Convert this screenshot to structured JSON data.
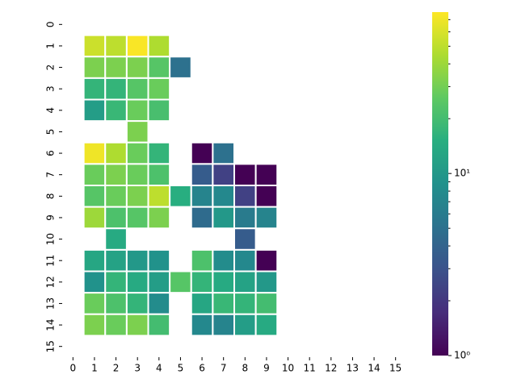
{
  "chart_data": {
    "type": "heatmap",
    "categories": [
      "0",
      "1",
      "2",
      "3",
      "4",
      "5",
      "6",
      "7",
      "8",
      "9",
      "10",
      "11",
      "12",
      "13",
      "14",
      "15"
    ],
    "y_categories": [
      "0",
      "1",
      "2",
      "3",
      "4",
      "5",
      "6",
      "7",
      "8",
      "9",
      "10",
      "11",
      "12",
      "13",
      "14",
      "15"
    ],
    "values": [
      [
        null,
        null,
        null,
        null,
        null,
        null,
        null,
        null,
        null,
        null,
        null,
        null,
        null,
        null,
        null,
        null
      ],
      [
        null,
        55,
        50,
        75,
        45,
        null,
        null,
        null,
        null,
        null,
        null,
        null,
        null,
        null,
        null,
        null
      ],
      [
        null,
        32,
        32,
        32,
        24,
        5,
        null,
        null,
        null,
        null,
        null,
        null,
        null,
        null,
        null,
        null
      ],
      [
        null,
        17,
        17,
        24,
        28,
        null,
        null,
        null,
        null,
        null,
        null,
        null,
        null,
        null,
        null,
        null
      ],
      [
        null,
        11,
        18,
        28,
        21,
        null,
        null,
        null,
        null,
        null,
        null,
        null,
        null,
        null,
        null,
        null
      ],
      [
        null,
        null,
        null,
        32,
        null,
        null,
        null,
        null,
        null,
        null,
        null,
        null,
        null,
        null,
        null,
        null
      ],
      [
        null,
        70,
        45,
        28,
        17,
        null,
        1,
        5,
        null,
        null,
        null,
        null,
        null,
        null,
        null,
        null
      ],
      [
        null,
        28,
        32,
        28,
        22,
        null,
        3.5,
        2.3,
        1,
        1,
        null,
        null,
        null,
        null,
        null,
        null
      ],
      [
        null,
        24,
        28,
        32,
        50,
        15,
        7,
        7.5,
        2.3,
        1,
        null,
        null,
        null,
        null,
        null,
        null
      ],
      [
        null,
        40,
        22,
        24,
        32,
        null,
        4.5,
        10,
        6,
        7,
        null,
        null,
        null,
        null,
        null,
        null
      ],
      [
        null,
        null,
        14,
        null,
        null,
        null,
        null,
        null,
        3.5,
        null,
        null,
        null,
        null,
        null,
        null,
        null
      ],
      [
        null,
        13,
        12,
        10,
        9,
        null,
        22,
        8,
        7.5,
        1,
        null,
        null,
        null,
        null,
        null,
        null
      ],
      [
        null,
        9,
        17,
        14,
        11,
        24,
        17,
        14,
        12,
        10,
        null,
        null,
        null,
        null,
        null,
        null
      ],
      [
        null,
        28,
        22,
        17,
        8,
        null,
        13,
        18,
        17,
        20,
        null,
        null,
        null,
        null,
        null,
        null
      ],
      [
        null,
        32,
        28,
        32,
        20,
        null,
        7.5,
        7,
        11,
        14,
        null,
        null,
        null,
        null,
        null,
        null
      ],
      [
        null,
        null,
        null,
        null,
        null,
        null,
        null,
        null,
        null,
        null,
        null,
        null,
        null,
        null,
        null,
        null
      ]
    ],
    "cmap": "viridis",
    "log_scale": true,
    "zlim": [
      1,
      77
    ],
    "zticks": [
      {
        "value": 1,
        "label": "10⁰"
      },
      {
        "value": 10,
        "label": "10¹"
      }
    ],
    "zminor_ticks": [
      2,
      3,
      4,
      5,
      6,
      7,
      8,
      9,
      20,
      30,
      40,
      50,
      60,
      70
    ]
  }
}
